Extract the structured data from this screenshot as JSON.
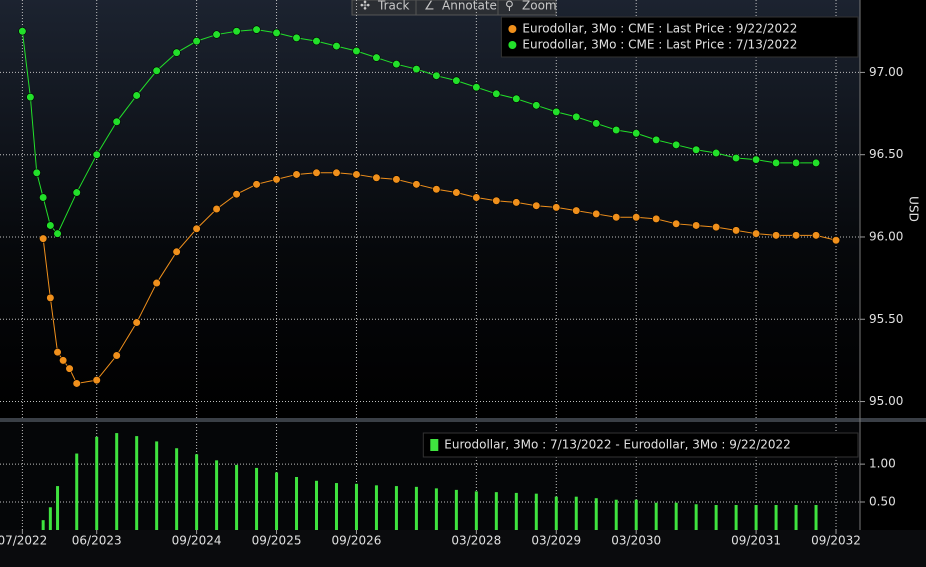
{
  "toolbar": [
    "Track",
    "Annotate",
    "Zoom"
  ],
  "chart_data": [
    {
      "type": "line",
      "y_axis_label": "USD",
      "xlim": [
        2022.22,
        2032.98
      ],
      "ylim": [
        94.9,
        97.44
      ],
      "yticks": [
        {
          "value": 95,
          "label": "95.00"
        },
        {
          "value": 95.5,
          "label": "95.50"
        },
        {
          "value": 96,
          "label": "96.00"
        },
        {
          "value": 96.5,
          "label": "96.50"
        },
        {
          "value": 97,
          "label": "97.00"
        }
      ],
      "grid": true,
      "legend": "top-right",
      "series": [
        {
          "name": "Eurodollar, 3Mo : CME : Last Price : 9/22/2022",
          "color": "#f0901c",
          "x": [
            2022.76,
            2022.85,
            2022.94,
            2023.01,
            2023.09,
            2023.18,
            2023.43,
            2023.68,
            2023.93,
            2024.18,
            2024.43,
            2024.68,
            2024.93,
            2025.18,
            2025.43,
            2025.68,
            2025.93,
            2026.18,
            2026.43,
            2026.68,
            2026.93,
            2027.18,
            2027.43,
            2027.68,
            2027.93,
            2028.18,
            2028.43,
            2028.68,
            2028.93,
            2029.18,
            2029.43,
            2029.68,
            2029.93,
            2030.18,
            2030.43,
            2030.68,
            2030.93,
            2031.18,
            2031.43,
            2031.68,
            2031.93,
            2032.18,
            2032.43,
            2032.68
          ],
          "values": [
            95.99,
            95.63,
            95.3,
            95.25,
            95.2,
            95.11,
            95.13,
            95.28,
            95.48,
            95.72,
            95.91,
            96.05,
            96.17,
            96.26,
            96.32,
            96.35,
            96.38,
            96.39,
            96.39,
            96.38,
            96.36,
            96.35,
            96.32,
            96.29,
            96.27,
            96.24,
            96.22,
            96.21,
            96.19,
            96.18,
            96.16,
            96.14,
            96.12,
            96.12,
            96.11,
            96.08,
            96.07,
            96.06,
            96.04,
            96.02,
            96.01,
            96.01,
            96.01,
            95.98
          ]
        },
        {
          "name": "Eurodollar, 3Mo : CME : Last Price : 7/13/2022",
          "color": "#22e02a",
          "x": [
            2022.5,
            2022.6,
            2022.68,
            2022.76,
            2022.85,
            2022.94,
            2023.18,
            2023.43,
            2023.68,
            2023.93,
            2024.18,
            2024.43,
            2024.68,
            2024.93,
            2025.18,
            2025.43,
            2025.68,
            2025.93,
            2026.18,
            2026.43,
            2026.68,
            2026.93,
            2027.18,
            2027.43,
            2027.68,
            2027.93,
            2028.18,
            2028.43,
            2028.68,
            2028.93,
            2029.18,
            2029.43,
            2029.68,
            2029.93,
            2030.18,
            2030.43,
            2030.68,
            2030.93,
            2031.18,
            2031.43,
            2031.68,
            2031.93,
            2032.18,
            2032.43
          ],
          "values": [
            97.25,
            96.85,
            96.39,
            96.24,
            96.07,
            96.02,
            96.27,
            96.5,
            96.7,
            96.86,
            97.01,
            97.12,
            97.19,
            97.23,
            97.25,
            97.26,
            97.24,
            97.21,
            97.19,
            97.16,
            97.13,
            97.09,
            97.05,
            97.02,
            96.98,
            96.95,
            96.91,
            96.87,
            96.84,
            96.8,
            96.76,
            96.73,
            96.69,
            96.65,
            96.63,
            96.59,
            96.56,
            96.53,
            96.51,
            96.48,
            96.47,
            96.45,
            96.45,
            96.45
          ]
        }
      ]
    },
    {
      "type": "bar",
      "xlim": [
        2022.22,
        2032.98
      ],
      "ylim": [
        0.13,
        1.53
      ],
      "yticks": [
        {
          "value": 0.5,
          "label": "0.50"
        },
        {
          "value": 1,
          "label": "1.00"
        }
      ],
      "xticks": [
        {
          "value": 2022.5,
          "label": "07/2022"
        },
        {
          "value": 2023.43,
          "label": "06/2023"
        },
        {
          "value": 2024.68,
          "label": "09/2024"
        },
        {
          "value": 2025.68,
          "label": "09/2025"
        },
        {
          "value": 2026.68,
          "label": "09/2026"
        },
        {
          "value": 2028.18,
          "label": "03/2028"
        },
        {
          "value": 2029.18,
          "label": "03/2029"
        },
        {
          "value": 2030.18,
          "label": "03/2030"
        },
        {
          "value": 2031.68,
          "label": "09/2031"
        },
        {
          "value": 2032.68,
          "label": "09/2032"
        }
      ],
      "grid": true,
      "legend": "top-right",
      "series": [
        {
          "name": "Eurodollar, 3Mo : 7/13/2022 - Eurodollar, 3Mo : 9/22/2022",
          "color": "#3fe33f",
          "x": [
            2022.76,
            2022.85,
            2022.94,
            2023.18,
            2023.43,
            2023.68,
            2023.93,
            2024.18,
            2024.43,
            2024.68,
            2024.93,
            2025.18,
            2025.43,
            2025.68,
            2025.93,
            2026.18,
            2026.43,
            2026.68,
            2026.93,
            2027.18,
            2027.43,
            2027.68,
            2027.93,
            2028.18,
            2028.43,
            2028.68,
            2028.93,
            2029.18,
            2029.43,
            2029.68,
            2029.93,
            2030.18,
            2030.43,
            2030.68,
            2030.93,
            2031.18,
            2031.43,
            2031.68,
            2031.93,
            2032.18,
            2032.43
          ],
          "values": [
            0.26,
            0.43,
            0.71,
            1.14,
            1.36,
            1.41,
            1.37,
            1.3,
            1.21,
            1.13,
            1.05,
            0.99,
            0.95,
            0.89,
            0.83,
            0.78,
            0.75,
            0.74,
            0.72,
            0.71,
            0.7,
            0.68,
            0.66,
            0.64,
            0.63,
            0.62,
            0.61,
            0.57,
            0.57,
            0.55,
            0.53,
            0.53,
            0.49,
            0.49,
            0.47,
            0.46,
            0.46,
            0.46,
            0.46,
            0.46,
            0.46
          ]
        }
      ]
    }
  ]
}
